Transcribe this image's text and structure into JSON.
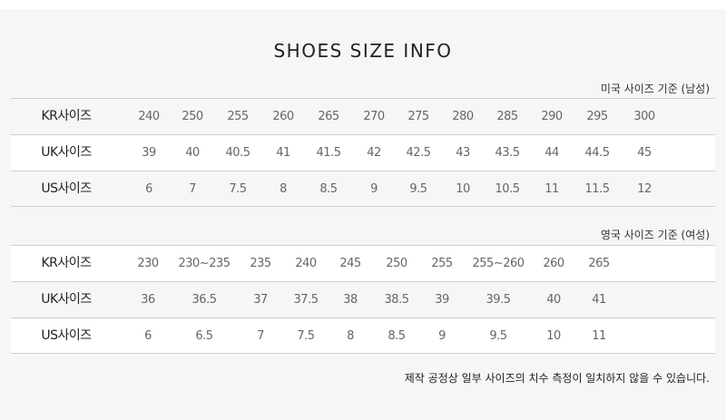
{
  "title": "SHOES SIZE INFO",
  "men": {
    "caption": "미국 사이즈 기준 (남성)",
    "rows": [
      {
        "label": "KR사이즈",
        "values": [
          "240",
          "250",
          "255",
          "260",
          "265",
          "270",
          "275",
          "280",
          "285",
          "290",
          "295",
          "300"
        ]
      },
      {
        "label": "UK사이즈",
        "values": [
          "39",
          "40",
          "40.5",
          "41",
          "41.5",
          "42",
          "42.5",
          "43",
          "43.5",
          "44",
          "44.5",
          "45"
        ]
      },
      {
        "label": "US사이즈",
        "values": [
          "6",
          "7",
          "7.5",
          "8",
          "8.5",
          "9",
          "9.5",
          "10",
          "10.5",
          "11",
          "11.5",
          "12"
        ]
      }
    ]
  },
  "women": {
    "caption": "영국 사이즈 기준 (여성)",
    "rows": [
      {
        "label": "KR사이즈",
        "values": [
          "230",
          "230~235",
          "235",
          "240",
          "245",
          "250",
          "255",
          "255~260",
          "260",
          "265"
        ]
      },
      {
        "label": "UK사이즈",
        "values": [
          "36",
          "36.5",
          "37",
          "37.5",
          "38",
          "38.5",
          "39",
          "39.5",
          "40",
          "41"
        ]
      },
      {
        "label": "US사이즈",
        "values": [
          "6",
          "6.5",
          "7",
          "7.5",
          "8",
          "8.5",
          "9",
          "9.5",
          "10",
          "11"
        ]
      }
    ]
  },
  "note": "제작 공정상 일부 사이즈의 치수 측정이 일치하지 않을 수 있습니다."
}
